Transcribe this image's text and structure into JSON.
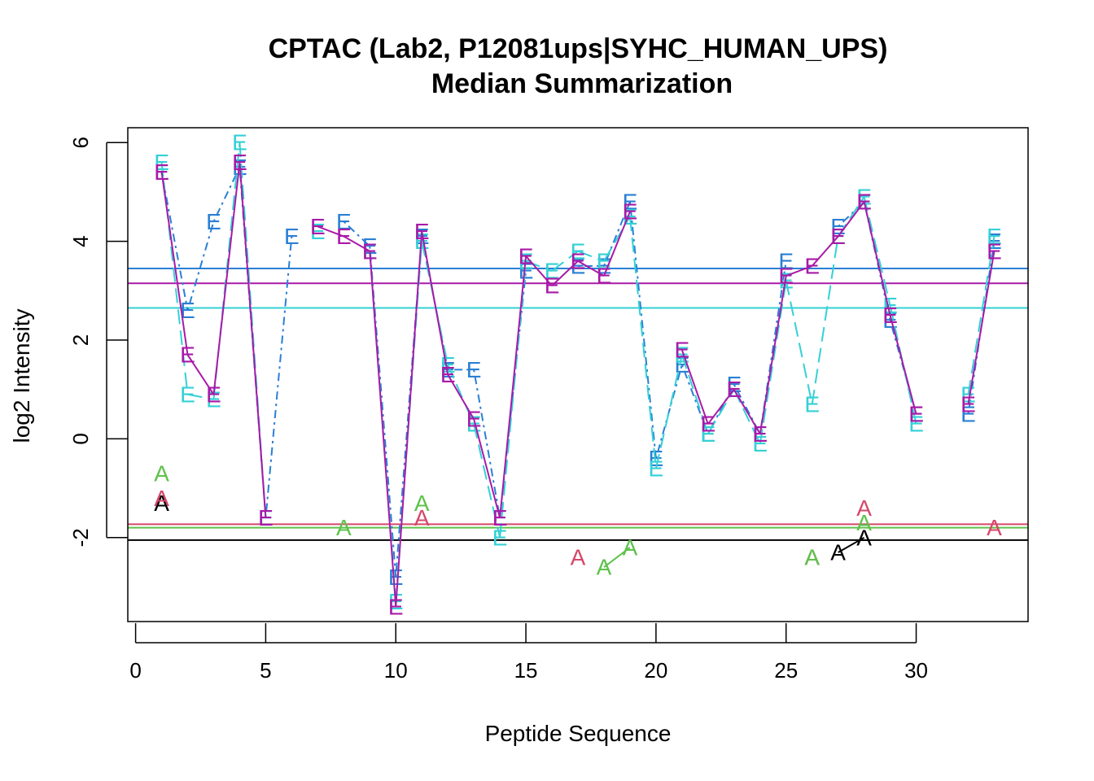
{
  "chart_data": {
    "type": "scatter",
    "title": "CPTAC (Lab2, P12081ups|SYHC_HUMAN_UPS)",
    "subtitle": "Median Summarization",
    "xlabel": "Peptide Sequence",
    "ylabel": "log2 Intensity",
    "xlim": [
      -0.3,
      34.3
    ],
    "ylim": [
      -3.7,
      6.3
    ],
    "xticks": [
      0,
      5,
      10,
      15,
      20,
      25,
      30
    ],
    "yticks": [
      -2,
      0,
      2,
      4,
      6
    ],
    "grid": false,
    "series": [
      {
        "marker": "E",
        "color": "#2a7fd4",
        "dash": "3 5 10 5",
        "points": [
          [
            1,
            5.4
          ],
          [
            2,
            2.6
          ],
          [
            3,
            4.4
          ],
          [
            4,
            5.5
          ],
          [
            5,
            -1.6
          ],
          [
            6,
            4.1
          ],
          [
            8,
            4.4
          ],
          [
            9,
            3.9
          ],
          [
            10,
            -2.8
          ],
          [
            11,
            4.1
          ],
          [
            12,
            1.4
          ],
          [
            13,
            1.4
          ],
          [
            14,
            -1.6
          ],
          [
            15,
            3.4
          ],
          [
            17,
            3.5
          ],
          [
            18,
            3.5
          ],
          [
            19,
            4.8
          ],
          [
            20,
            -0.4
          ],
          [
            21,
            1.5
          ],
          [
            22,
            0.1
          ],
          [
            23,
            1.1
          ],
          [
            24,
            0.1
          ],
          [
            25,
            3.6
          ],
          [
            27,
            4.3
          ],
          [
            28,
            4.8
          ],
          [
            29,
            2.4
          ],
          [
            30,
            0.5
          ],
          [
            32,
            0.5
          ],
          [
            33,
            4.0
          ]
        ]
      },
      {
        "marker": "E",
        "color": "#34d0d6",
        "dash": "18 8",
        "points": [
          [
            1,
            5.6
          ],
          [
            2,
            0.9
          ],
          [
            3,
            0.8
          ],
          [
            4,
            6.0
          ],
          [
            5,
            -1.6
          ],
          [
            7,
            4.2
          ],
          [
            9,
            3.8
          ],
          [
            10,
            -3.3
          ],
          [
            11,
            4.0
          ],
          [
            12,
            1.5
          ],
          [
            13,
            0.3
          ],
          [
            14,
            -2.0
          ],
          [
            15,
            3.6
          ],
          [
            16,
            3.4
          ],
          [
            17,
            3.8
          ],
          [
            18,
            3.6
          ],
          [
            19,
            4.5
          ],
          [
            20,
            -0.6
          ],
          [
            21,
            1.7
          ],
          [
            22,
            0.1
          ],
          [
            23,
            1.0
          ],
          [
            24,
            -0.1
          ],
          [
            25,
            3.2
          ],
          [
            26,
            0.7
          ],
          [
            27,
            4.1
          ],
          [
            28,
            4.9
          ],
          [
            29,
            2.7
          ],
          [
            30,
            0.3
          ],
          [
            32,
            0.9
          ],
          [
            33,
            4.1
          ]
        ]
      },
      {
        "marker": "E",
        "color": "#a81aa8",
        "dash": "",
        "points": [
          [
            1,
            5.4
          ],
          [
            2,
            1.7
          ],
          [
            3,
            0.9
          ],
          [
            4,
            5.6
          ],
          [
            5,
            -1.6
          ],
          [
            7,
            4.3
          ],
          [
            8,
            4.1
          ],
          [
            9,
            3.8
          ],
          [
            10,
            -3.4
          ],
          [
            11,
            4.2
          ],
          [
            12,
            1.3
          ],
          [
            13,
            0.4
          ],
          [
            14,
            -1.6
          ],
          [
            15,
            3.7
          ],
          [
            16,
            3.1
          ],
          [
            17,
            3.6
          ],
          [
            18,
            3.3
          ],
          [
            19,
            4.6
          ],
          [
            21,
            1.8
          ],
          [
            22,
            0.3
          ],
          [
            23,
            1.0
          ],
          [
            24,
            0.1
          ],
          [
            25,
            3.3
          ],
          [
            26,
            3.5
          ],
          [
            27,
            4.1
          ],
          [
            28,
            4.8
          ],
          [
            29,
            2.5
          ],
          [
            30,
            0.5
          ],
          [
            32,
            0.7
          ],
          [
            33,
            3.8
          ]
        ]
      },
      {
        "marker": "A",
        "color": "#000000",
        "dash": "",
        "points": [
          [
            1,
            -1.3
          ],
          [
            27,
            -2.3
          ],
          [
            28,
            -2.0
          ]
        ]
      },
      {
        "marker": "A",
        "color": "#d6476a",
        "dash": "",
        "points": [
          [
            1,
            -1.2
          ],
          [
            11,
            -1.6
          ],
          [
            17,
            -2.4
          ],
          [
            26,
            -2.4
          ],
          [
            28,
            -1.4
          ],
          [
            33,
            -1.8
          ]
        ]
      },
      {
        "marker": "A",
        "color": "#5ec24a",
        "dash": "",
        "points": [
          [
            1,
            -0.7
          ],
          [
            8,
            -1.8
          ],
          [
            11,
            -1.3
          ],
          [
            18,
            -2.6
          ],
          [
            19,
            -2.2
          ],
          [
            26,
            -2.4
          ],
          [
            28,
            -1.7
          ]
        ]
      }
    ],
    "hlines": [
      {
        "y": 3.45,
        "color": "#2a7fd4"
      },
      {
        "y": 3.15,
        "color": "#a81aa8"
      },
      {
        "y": 2.65,
        "color": "#34d0d6"
      },
      {
        "y": -1.73,
        "color": "#d6476a"
      },
      {
        "y": -1.8,
        "color": "#5ec24a"
      },
      {
        "y": -2.05,
        "color": "#000000"
      }
    ]
  }
}
